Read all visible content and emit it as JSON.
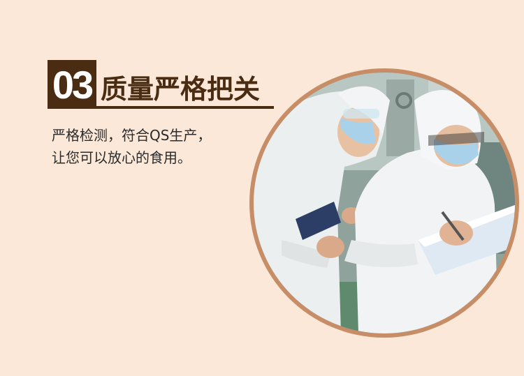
{
  "section": {
    "number": "03",
    "title": "质量严格把关",
    "description_line1": "严格检测，符合QS生产，",
    "description_line2": "让您可以放心的食用。"
  },
  "photo": {
    "subject": "technicians in white protective suits inspecting a clipboard in a factory"
  },
  "colors": {
    "background": "#fbe8d8",
    "accent_brown": "#4a2c13",
    "ring": "#c78d67"
  }
}
